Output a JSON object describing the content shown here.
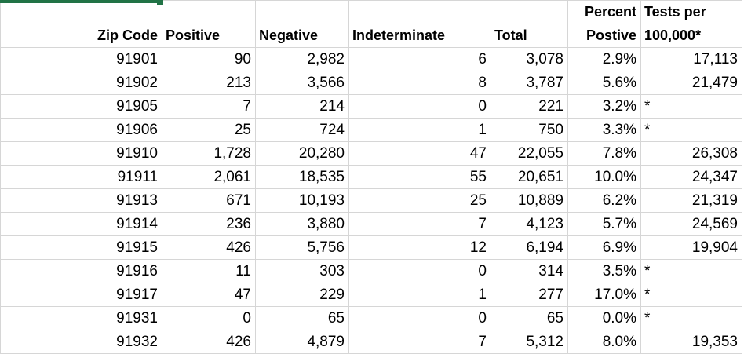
{
  "headers": {
    "row1": {
      "percent": "Percent",
      "tests_per": "Tests per"
    },
    "row2": {
      "zip_code": "Zip Code",
      "positive": "Positive",
      "negative": "Negative",
      "indeterminate": "Indeterminate",
      "total": "Total",
      "percent_positive": "Postive",
      "tests_per_100k": "100,000*"
    }
  },
  "rows": [
    {
      "zip": "91901",
      "positive": "90",
      "negative": "2,982",
      "indeterminate": "6",
      "total": "3,078",
      "pct": "2.9%",
      "per100k": "17,113"
    },
    {
      "zip": "91902",
      "positive": "213",
      "negative": "3,566",
      "indeterminate": "8",
      "total": "3,787",
      "pct": "5.6%",
      "per100k": "21,479"
    },
    {
      "zip": "91905",
      "positive": "7",
      "negative": "214",
      "indeterminate": "0",
      "total": "221",
      "pct": "3.2%",
      "per100k": "*"
    },
    {
      "zip": "91906",
      "positive": "25",
      "negative": "724",
      "indeterminate": "1",
      "total": "750",
      "pct": "3.3%",
      "per100k": "*"
    },
    {
      "zip": "91910",
      "positive": "1,728",
      "negative": "20,280",
      "indeterminate": "47",
      "total": "22,055",
      "pct": "7.8%",
      "per100k": "26,308"
    },
    {
      "zip": "91911",
      "positive": "2,061",
      "negative": "18,535",
      "indeterminate": "55",
      "total": "20,651",
      "pct": "10.0%",
      "per100k": "24,347"
    },
    {
      "zip": "91913",
      "positive": "671",
      "negative": "10,193",
      "indeterminate": "25",
      "total": "10,889",
      "pct": "6.2%",
      "per100k": "21,319"
    },
    {
      "zip": "91914",
      "positive": "236",
      "negative": "3,880",
      "indeterminate": "7",
      "total": "4,123",
      "pct": "5.7%",
      "per100k": "24,569"
    },
    {
      "zip": "91915",
      "positive": "426",
      "negative": "5,756",
      "indeterminate": "12",
      "total": "6,194",
      "pct": "6.9%",
      "per100k": "19,904"
    },
    {
      "zip": "91916",
      "positive": "11",
      "negative": "303",
      "indeterminate": "0",
      "total": "314",
      "pct": "3.5%",
      "per100k": "*"
    },
    {
      "zip": "91917",
      "positive": "47",
      "negative": "229",
      "indeterminate": "1",
      "total": "277",
      "pct": "17.0%",
      "per100k": "*"
    },
    {
      "zip": "91931",
      "positive": "0",
      "negative": "65",
      "indeterminate": "0",
      "total": "65",
      "pct": "0.0%",
      "per100k": "*"
    },
    {
      "zip": "91932",
      "positive": "426",
      "negative": "4,879",
      "indeterminate": "7",
      "total": "5,312",
      "pct": "8.0%",
      "per100k": "19,353"
    }
  ],
  "colors": {
    "gridline": "#d6d6d6",
    "selection": "#217346"
  }
}
